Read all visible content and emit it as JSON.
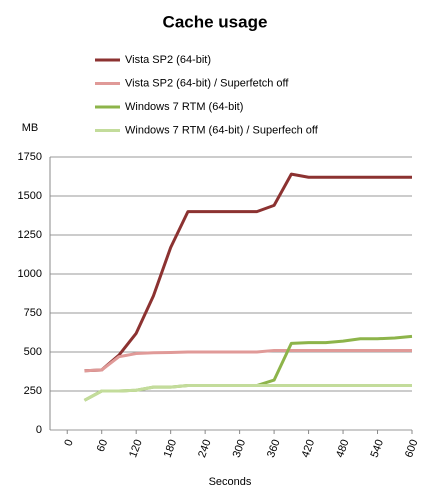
{
  "chart_data": {
    "type": "line",
    "title": "Cache usage",
    "y_label": "MB",
    "x_label": "Seconds",
    "x": [
      30,
      60,
      90,
      120,
      150,
      180,
      210,
      240,
      270,
      300,
      330,
      360,
      390,
      420,
      450,
      480,
      510,
      540,
      570,
      600
    ],
    "series": [
      {
        "name": "Vista SP2 (64-bit)",
        "color": "#8c3231",
        "values": [
          380,
          385,
          480,
          620,
          860,
          1170,
          1400,
          1400,
          1400,
          1400,
          1400,
          1440,
          1640,
          1620,
          1620,
          1620,
          1620,
          1620,
          1620,
          1620
        ]
      },
      {
        "name": "Vista SP2 (64-bit) / Superfetch off",
        "color": "#e09a98",
        "values": [
          380,
          385,
          470,
          490,
          495,
          497,
          500,
          500,
          500,
          500,
          500,
          510,
          510,
          510,
          510,
          510,
          510,
          510,
          510,
          510
        ]
      },
      {
        "name": "Windows 7 RTM  (64-bit)",
        "color": "#8db44a",
        "values": [
          190,
          250,
          250,
          255,
          275,
          275,
          285,
          285,
          285,
          285,
          285,
          320,
          555,
          560,
          560,
          570,
          585,
          585,
          590,
          600
        ]
      },
      {
        "name": "Windows 7 RTM  (64-bit) / Superfech off",
        "color": "#c3dc9b",
        "values": [
          190,
          250,
          250,
          255,
          275,
          275,
          285,
          285,
          285,
          285,
          285,
          285,
          285,
          285,
          285,
          285,
          285,
          285,
          285,
          285
        ]
      }
    ],
    "xlim": [
      -30,
      600
    ],
    "xticks": [
      0,
      60,
      120,
      180,
      240,
      300,
      360,
      420,
      480,
      540,
      600
    ],
    "ylim": [
      0,
      1750
    ],
    "yticks": [
      0,
      250,
      500,
      750,
      1000,
      1250,
      1500,
      1750
    ],
    "grid": true
  }
}
